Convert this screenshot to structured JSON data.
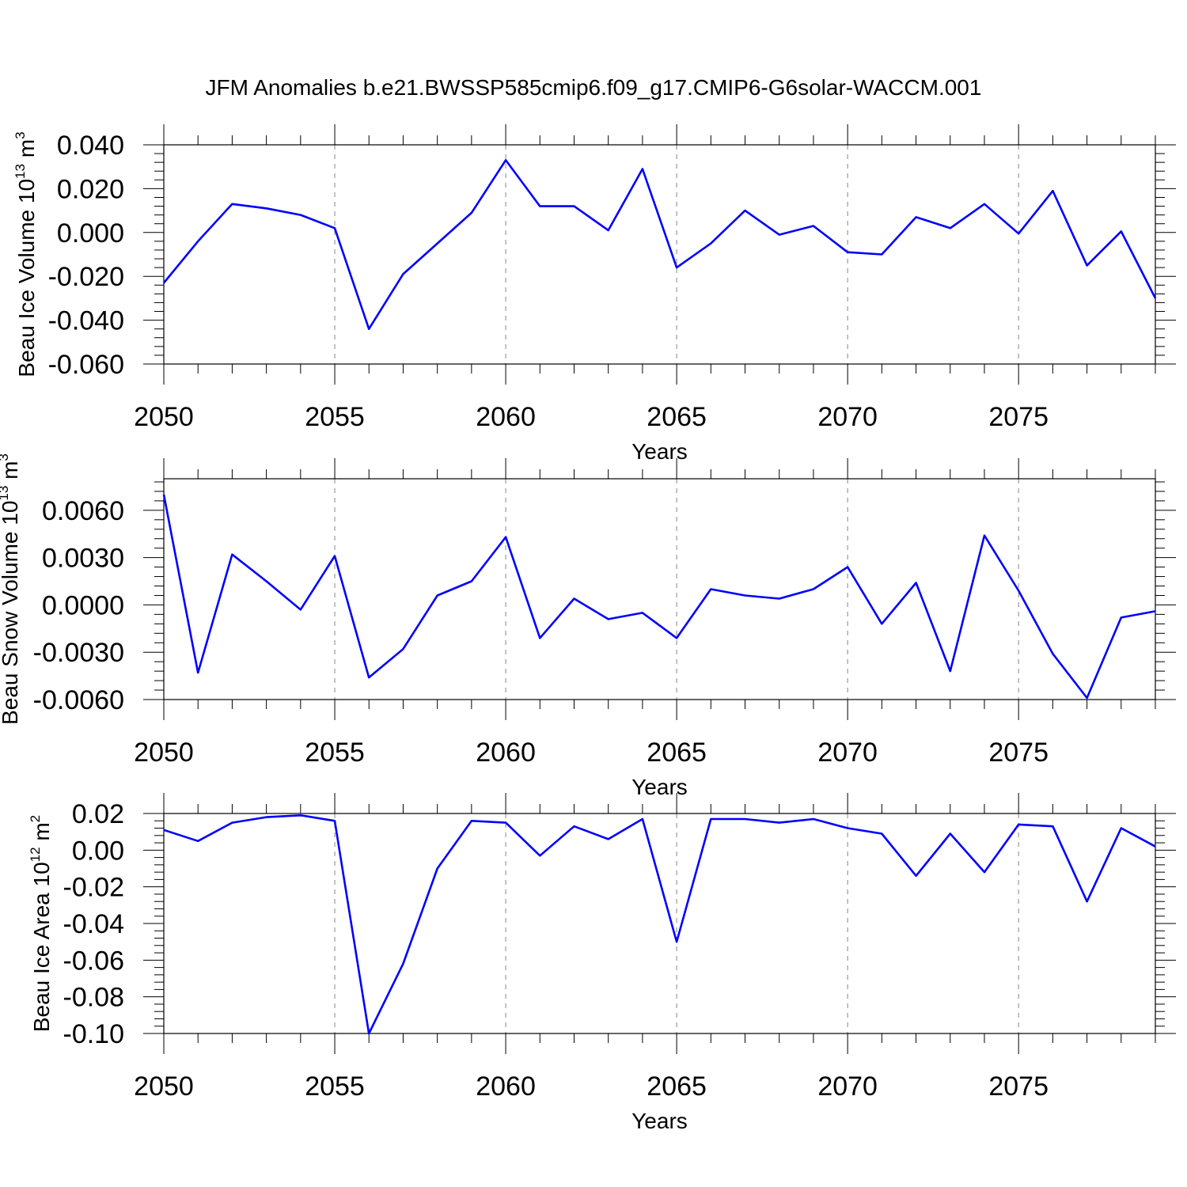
{
  "colors": {
    "series": "#0000ff",
    "grid": "#9a9a9a",
    "axis": "#000000"
  },
  "chart_data": [
    {
      "type": "line",
      "title": "JFM Anomalies b.e21.BWSSP585cmip6.f09_g17.CMIP6-G6solar-WACCM.001",
      "xlabel": "Years",
      "ylabel": "Beau Ice Volume 10",
      "ylabel_exp": "13",
      "ylabel_unit": " m",
      "ylabel_unit_exp": "3",
      "xlim": [
        2050,
        2079
      ],
      "ylim": [
        -0.06,
        0.04
      ],
      "yticks": [
        0.04,
        0.02,
        0.0,
        -0.02,
        -0.04,
        -0.06
      ],
      "ytick_labels": [
        "0.040",
        "0.020",
        "0.000",
        "-0.020",
        "-0.040",
        "-0.060"
      ],
      "xticks": [
        2050,
        2055,
        2060,
        2065,
        2070,
        2075
      ],
      "xtick_labels": [
        "2050",
        "2055",
        "2060",
        "2065",
        "2070",
        "2075"
      ],
      "grid": "dashed vertical at major x ticks",
      "series": [
        {
          "name": "Beau Ice Volume",
          "x": [
            2050,
            2051,
            2052,
            2053,
            2054,
            2055,
            2056,
            2057,
            2058,
            2059,
            2060,
            2061,
            2062,
            2063,
            2064,
            2065,
            2066,
            2067,
            2068,
            2069,
            2070,
            2071,
            2072,
            2073,
            2074,
            2075,
            2076,
            2077,
            2078,
            2079
          ],
          "values": [
            -0.023,
            -0.004,
            0.013,
            0.011,
            0.008,
            0.002,
            -0.044,
            -0.019,
            -0.005,
            0.009,
            0.033,
            0.012,
            0.012,
            0.001,
            0.029,
            -0.016,
            -0.005,
            0.01,
            -0.001,
            0.003,
            -0.009,
            -0.01,
            0.007,
            0.002,
            0.013,
            -0.0005,
            0.019,
            -0.015,
            0.0005,
            -0.03
          ]
        }
      ]
    },
    {
      "type": "line",
      "title": "",
      "xlabel": "Years",
      "ylabel": "Beau Snow Volume 10",
      "ylabel_exp": "13",
      "ylabel_unit": " m",
      "ylabel_unit_exp": "3",
      "xlim": [
        2050,
        2079
      ],
      "ylim": [
        -0.006,
        0.008
      ],
      "yticks": [
        0.006,
        0.003,
        0.0,
        -0.003,
        -0.006
      ],
      "ytick_labels": [
        "0.0060",
        "0.0030",
        "0.0000",
        "-0.0030",
        "-0.0060"
      ],
      "xticks": [
        2050,
        2055,
        2060,
        2065,
        2070,
        2075
      ],
      "xtick_labels": [
        "2050",
        "2055",
        "2060",
        "2065",
        "2070",
        "2075"
      ],
      "grid": "dashed vertical at major x ticks",
      "series": [
        {
          "name": "Beau Snow Volume",
          "x": [
            2050,
            2051,
            2052,
            2053,
            2054,
            2055,
            2056,
            2057,
            2058,
            2059,
            2060,
            2061,
            2062,
            2063,
            2064,
            2065,
            2066,
            2067,
            2068,
            2069,
            2070,
            2071,
            2072,
            2073,
            2074,
            2075,
            2076,
            2077,
            2078,
            2079
          ],
          "values": [
            0.007,
            -0.0043,
            0.0032,
            0.0015,
            -0.0003,
            0.0031,
            -0.0046,
            -0.0028,
            0.0006,
            0.0015,
            0.0043,
            -0.0021,
            0.0004,
            -0.0009,
            -0.0005,
            -0.0021,
            0.001,
            0.0006,
            0.0004,
            0.001,
            0.0024,
            -0.0012,
            0.0014,
            -0.0042,
            0.0044,
            0.0009,
            -0.0031,
            -0.0059,
            -0.0008,
            -0.0004
          ]
        }
      ]
    },
    {
      "type": "line",
      "title": "",
      "xlabel": "Years",
      "ylabel": "Beau Ice Area 10",
      "ylabel_exp": "12",
      "ylabel_unit": " m",
      "ylabel_unit_exp": "2",
      "xlim": [
        2050,
        2079
      ],
      "ylim": [
        -0.1,
        0.02
      ],
      "yticks": [
        0.02,
        0.0,
        -0.02,
        -0.04,
        -0.06,
        -0.08,
        -0.1
      ],
      "ytick_labels": [
        "0.02",
        "0.00",
        "-0.02",
        "-0.04",
        "-0.06",
        "-0.08",
        "-0.10"
      ],
      "xticks": [
        2050,
        2055,
        2060,
        2065,
        2070,
        2075
      ],
      "xtick_labels": [
        "2050",
        "2055",
        "2060",
        "2065",
        "2070",
        "2075"
      ],
      "grid": "dashed vertical at major x ticks",
      "series": [
        {
          "name": "Beau Ice Area",
          "x": [
            2050,
            2051,
            2052,
            2053,
            2054,
            2055,
            2056,
            2057,
            2058,
            2059,
            2060,
            2061,
            2062,
            2063,
            2064,
            2065,
            2066,
            2067,
            2068,
            2069,
            2070,
            2071,
            2072,
            2073,
            2074,
            2075,
            2076,
            2077,
            2078,
            2079
          ],
          "values": [
            0.011,
            0.005,
            0.015,
            0.018,
            0.019,
            0.016,
            -0.1,
            -0.062,
            -0.01,
            0.016,
            0.015,
            -0.003,
            0.013,
            0.006,
            0.017,
            -0.05,
            0.017,
            0.017,
            0.015,
            0.017,
            0.012,
            0.009,
            -0.014,
            0.009,
            -0.012,
            0.014,
            0.013,
            -0.028,
            0.012,
            0.002
          ]
        }
      ]
    }
  ]
}
